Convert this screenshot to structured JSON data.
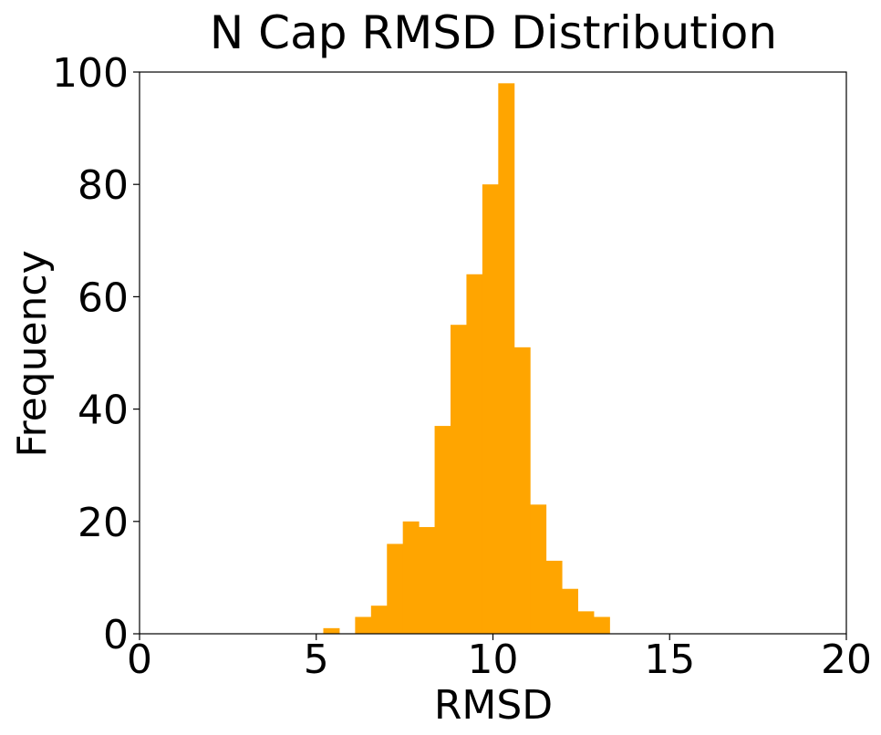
{
  "chart_data": {
    "type": "bar",
    "title": "N Cap RMSD Distribution",
    "xlabel": "RMSD",
    "ylabel": "Frequency",
    "xlim": [
      0,
      20
    ],
    "ylim": [
      0,
      100
    ],
    "x_ticks": [
      0,
      5,
      10,
      15,
      20
    ],
    "y_ticks": [
      0,
      20,
      40,
      60,
      80,
      100
    ],
    "grid": false,
    "bar_color": "#FFA500",
    "bins": [
      {
        "x0": 5.2,
        "x1": 5.65,
        "count": 1
      },
      {
        "x0": 5.65,
        "x1": 6.1,
        "count": 0
      },
      {
        "x0": 6.1,
        "x1": 6.55,
        "count": 3
      },
      {
        "x0": 6.55,
        "x1": 7.0,
        "count": 5
      },
      {
        "x0": 7.0,
        "x1": 7.45,
        "count": 16
      },
      {
        "x0": 7.45,
        "x1": 7.9,
        "count": 20
      },
      {
        "x0": 7.9,
        "x1": 8.35,
        "count": 19
      },
      {
        "x0": 8.35,
        "x1": 8.8,
        "count": 37
      },
      {
        "x0": 8.8,
        "x1": 9.25,
        "count": 55
      },
      {
        "x0": 9.25,
        "x1": 9.7,
        "count": 64
      },
      {
        "x0": 9.7,
        "x1": 10.15,
        "count": 80
      },
      {
        "x0": 10.15,
        "x1": 10.6,
        "count": 98
      },
      {
        "x0": 10.6,
        "x1": 11.05,
        "count": 51
      },
      {
        "x0": 11.05,
        "x1": 11.5,
        "count": 23
      },
      {
        "x0": 11.5,
        "x1": 11.95,
        "count": 13
      },
      {
        "x0": 11.95,
        "x1": 12.4,
        "count": 8
      },
      {
        "x0": 12.4,
        "x1": 12.85,
        "count": 4
      },
      {
        "x0": 12.85,
        "x1": 13.3,
        "count": 3
      }
    ]
  }
}
